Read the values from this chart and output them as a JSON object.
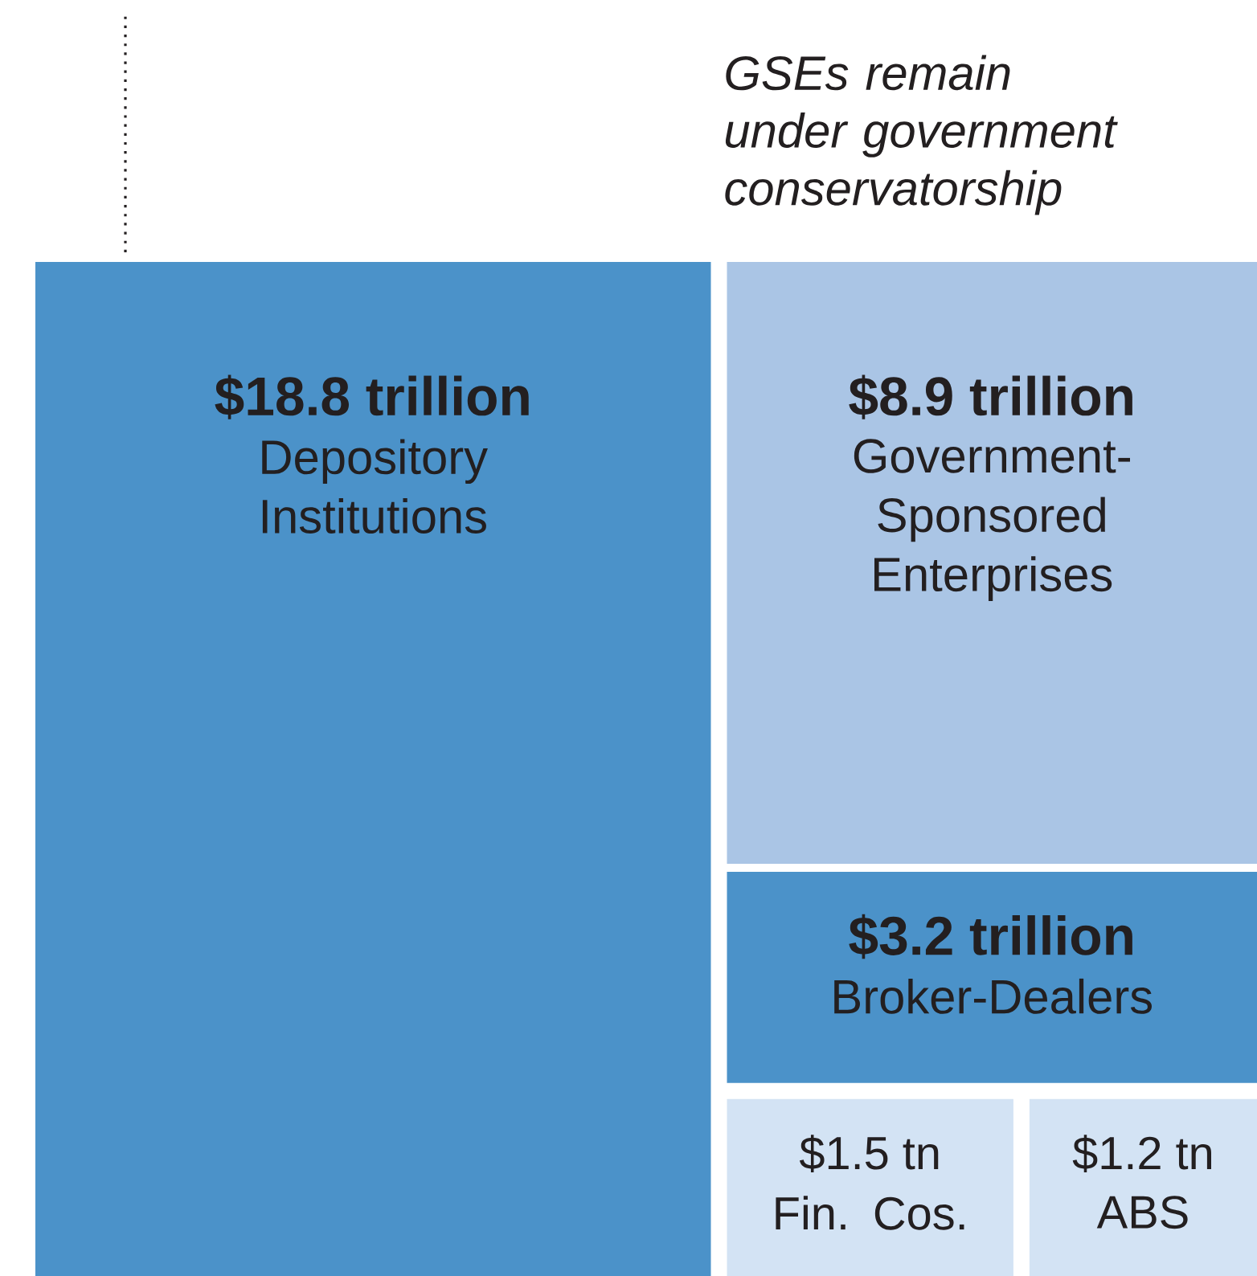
{
  "chart_data": {
    "type": "other",
    "annotations": [
      "GSEs remain under government conservatorship"
    ],
    "categories": [
      "Depository Institutions",
      "Government-Sponsored Enterprises",
      "Broker-Dealers",
      "Fin. Cos.",
      "ABS"
    ],
    "values": [
      18.8,
      8.9,
      3.2,
      1.5,
      1.2
    ],
    "value_labels": [
      "$18.8 trillion",
      "$8.9 trillion",
      "$3.2 trillion",
      "$1.5 tn",
      "$1.2 tn"
    ],
    "colors": [
      "#4b92c9",
      "#aac5e5",
      "#4b92c9",
      "#d3e3f4",
      "#d3e3f4"
    ]
  }
}
